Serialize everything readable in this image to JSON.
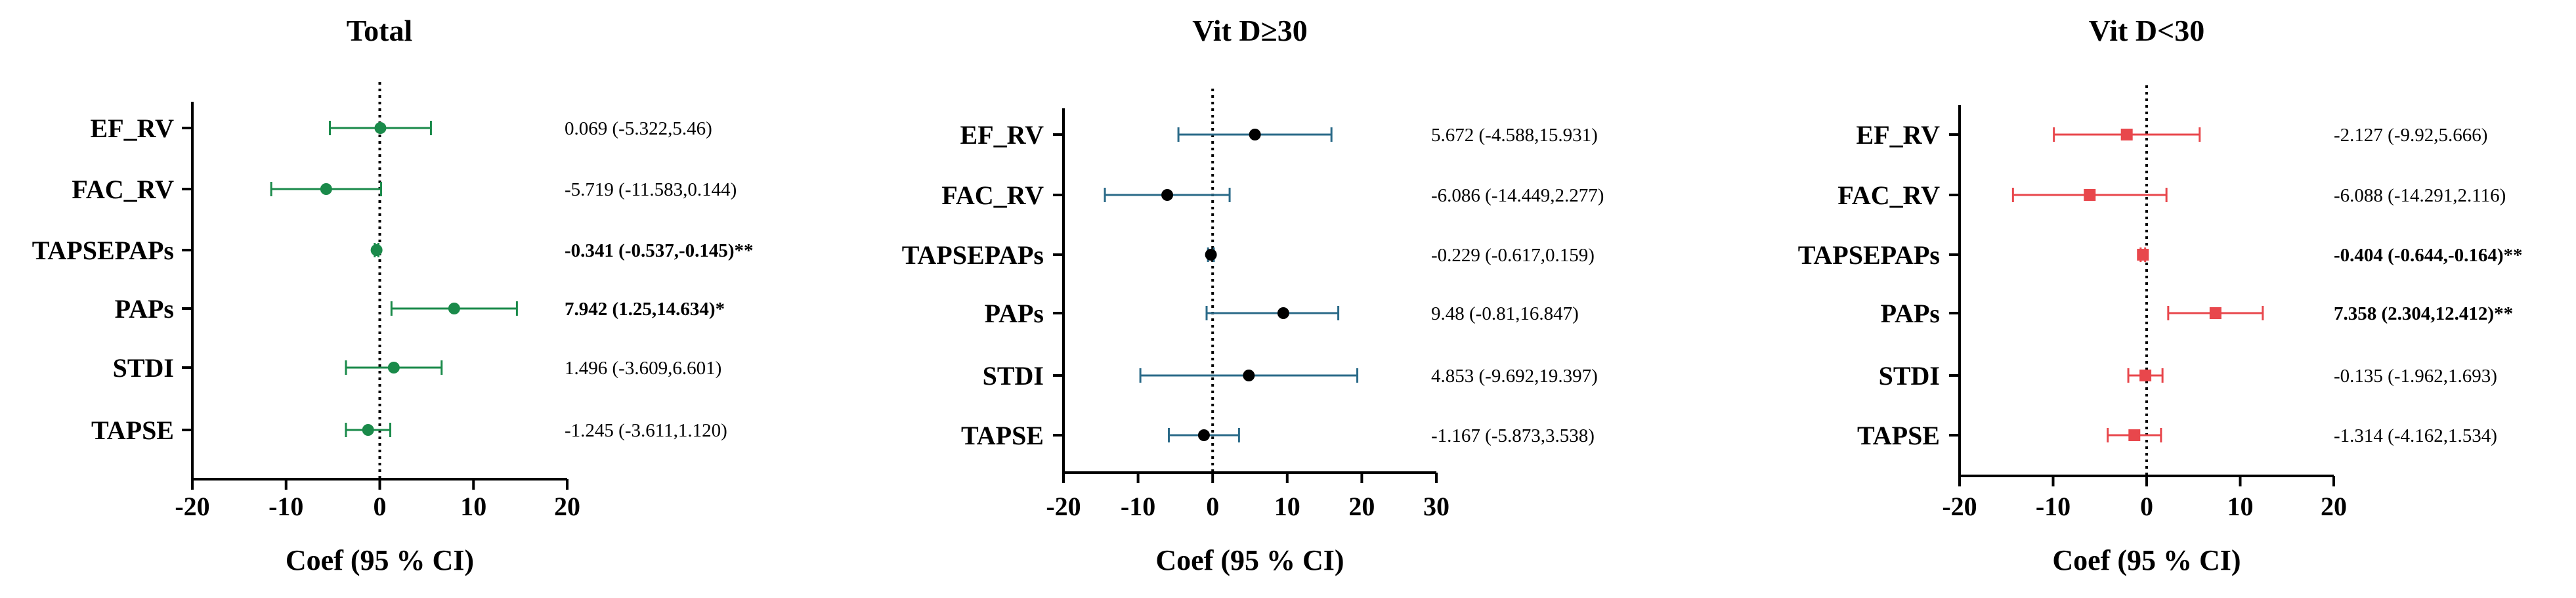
{
  "chart_data": [
    {
      "type": "forest",
      "title": "Total",
      "xlabel": "Coef (95 % CI)",
      "xlim": [
        -20,
        20
      ],
      "xticks": [
        -20,
        -10,
        0,
        10,
        20
      ],
      "color": "#1a8a4a",
      "marker": "circle",
      "rows": [
        {
          "label": "EF_RV",
          "coef": 0.069,
          "lo": -5.322,
          "hi": 5.46,
          "text": "0.069 (-5.322,5.46)",
          "bold": false
        },
        {
          "label": "FAC_RV",
          "coef": -5.719,
          "lo": -11.583,
          "hi": 0.144,
          "text": "-5.719 (-11.583,0.144)",
          "bold": false
        },
        {
          "label": "TAPSEPAPs",
          "coef": -0.341,
          "lo": -0.537,
          "hi": -0.145,
          "text": "-0.341 (-0.537,-0.145)**",
          "bold": true
        },
        {
          "label": "PAPs",
          "coef": 7.942,
          "lo": 1.25,
          "hi": 14.634,
          "text": "7.942 (1.25,14.634)*",
          "bold": true
        },
        {
          "label": "STDI",
          "coef": 1.496,
          "lo": -3.609,
          "hi": 6.601,
          "text": "1.496 (-3.609,6.601)",
          "bold": false
        },
        {
          "label": "TAPSE",
          "coef": -1.245,
          "lo": -3.611,
          "hi": 1.12,
          "text": "-1.245 (-3.611,1.120)",
          "bold": false
        }
      ]
    },
    {
      "type": "forest",
      "title": "Vit D≥30",
      "xlabel": "Coef (95 % CI)",
      "xlim": [
        -20,
        30
      ],
      "xticks": [
        -20,
        -10,
        0,
        10,
        20,
        30
      ],
      "color": "#2a6a88",
      "marker": "circle",
      "rows": [
        {
          "label": "EF_RV",
          "coef": 5.672,
          "lo": -4.588,
          "hi": 15.931,
          "text": "5.672 (-4.588,15.931)",
          "bold": false
        },
        {
          "label": "FAC_RV",
          "coef": -6.086,
          "lo": -14.449,
          "hi": 2.277,
          "text": "-6.086 (-14.449,2.277)",
          "bold": false
        },
        {
          "label": "TAPSEPAPs",
          "coef": -0.229,
          "lo": -0.617,
          "hi": 0.159,
          "text": "-0.229 (-0.617,0.159)",
          "bold": false
        },
        {
          "label": "PAPs",
          "coef": 9.48,
          "lo": -0.81,
          "hi": 16.847,
          "text": "9.48 (-0.81,16.847)",
          "bold": false
        },
        {
          "label": "STDI",
          "coef": 4.853,
          "lo": -9.692,
          "hi": 19.397,
          "text": "4.853 (-9.692,19.397)",
          "bold": false
        },
        {
          "label": "TAPSE",
          "coef": -1.167,
          "lo": -5.873,
          "hi": 3.538,
          "text": "-1.167 (-5.873,3.538)",
          "bold": false
        }
      ]
    },
    {
      "type": "forest",
      "title": "Vit D<30",
      "xlabel": "Coef (95 % CI)",
      "xlim": [
        -20,
        20
      ],
      "xticks": [
        -20,
        -10,
        0,
        10,
        20
      ],
      "color": "#e8474c",
      "marker": "square",
      "rows": [
        {
          "label": "EF_RV",
          "coef": -2.127,
          "lo": -9.92,
          "hi": 5.666,
          "text": "-2.127 (-9.92,5.666)",
          "bold": false
        },
        {
          "label": "FAC_RV",
          "coef": -6.088,
          "lo": -14.291,
          "hi": 2.116,
          "text": "-6.088 (-14.291,2.116)",
          "bold": false
        },
        {
          "label": "TAPSEPAPs",
          "coef": -0.404,
          "lo": -0.644,
          "hi": -0.164,
          "text": "-0.404 (-0.644,-0.164)**",
          "bold": true
        },
        {
          "label": "PAPs",
          "coef": 7.358,
          "lo": 2.304,
          "hi": 12.412,
          "text": "7.358 (2.304,12.412)**",
          "bold": true
        },
        {
          "label": "STDI",
          "coef": -0.135,
          "lo": -1.962,
          "hi": 1.693,
          "text": "-0.135 (-1.962,1.693)",
          "bold": false
        },
        {
          "label": "TAPSE",
          "coef": -1.314,
          "lo": -4.162,
          "hi": 1.534,
          "text": "-1.314 (-4.162,1.534)",
          "bold": false
        }
      ]
    }
  ]
}
